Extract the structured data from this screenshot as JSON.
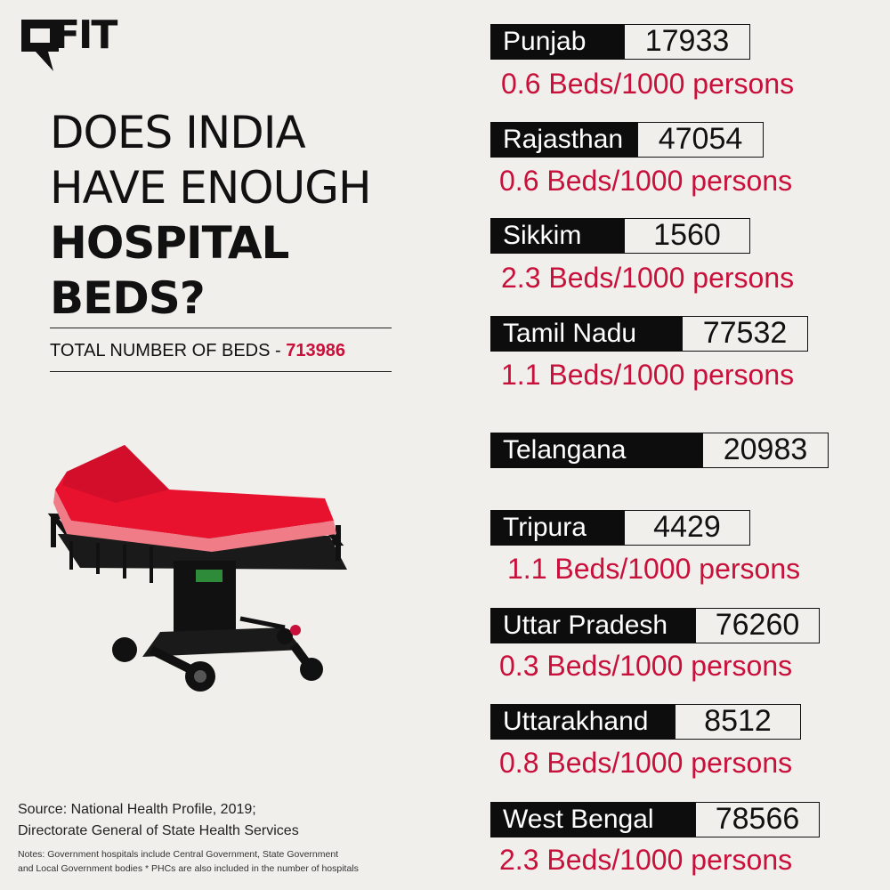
{
  "logo": {
    "text": "FIT",
    "icon": "speech-bubble-icon"
  },
  "title": {
    "line1": "DOES INDIA",
    "line2": "HAVE ENOUGH",
    "line3": "HOSPITAL",
    "line4": "BEDS?"
  },
  "total": {
    "label": "TOTAL NUMBER OF BEDS - ",
    "value": "713986"
  },
  "illustration": {
    "icon": "hospital-stretcher-icon"
  },
  "source": {
    "line1": "Source: National Health Profile, 2019;",
    "line2": "Directorate General of State Health Services"
  },
  "notes": {
    "line1": "Notes: Government hospitals include Central Government, State Government",
    "line2": "and Local Government bodies * PHCs are also included in the number of hospitals"
  },
  "colors": {
    "background": "#f1efec",
    "accent": "#c8103a",
    "label_bg": "#0d0d0d",
    "mattress": "#e8122f"
  },
  "states": [
    {
      "name": "Punjab",
      "beds": "17933",
      "per_capita": "0.6 Beds/1000 persons"
    },
    {
      "name": "Rajasthan",
      "beds": "47054",
      "per_capita": "0.6 Beds/1000 persons"
    },
    {
      "name": "Sikkim",
      "beds": "1560",
      "per_capita": "2.3 Beds/1000 persons"
    },
    {
      "name": "Tamil Nadu",
      "beds": "77532",
      "per_capita": "1.1 Beds/1000 persons"
    },
    {
      "name": "Telangana",
      "beds": "20983",
      "per_capita": ""
    },
    {
      "name": "Tripura",
      "beds": "4429",
      "per_capita": "1.1 Beds/1000 persons"
    },
    {
      "name": "Uttar Pradesh",
      "beds": "76260",
      "per_capita": "0.3 Beds/1000 persons"
    },
    {
      "name": "Uttarakhand",
      "beds": "8512",
      "per_capita": "0.8 Beds/1000 persons"
    },
    {
      "name": "West Bengal",
      "beds": "78566",
      "per_capita": "2.3 Beds/1000 persons"
    }
  ]
}
